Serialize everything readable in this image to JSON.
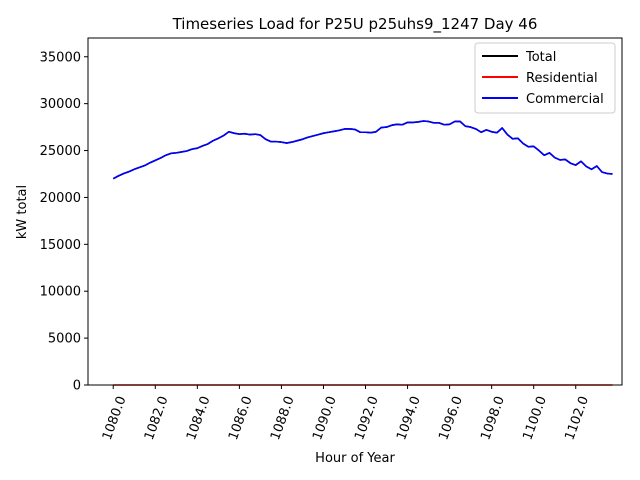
{
  "chart_data": {
    "type": "line",
    "title": "Timeseries Load for P25U p25uhs9_1247  Day 46",
    "xlabel": "Hour of Year",
    "ylabel": "kW total",
    "xlim": [
      1078.8,
      1104.2
    ],
    "ylim": [
      0,
      37000
    ],
    "x_ticks": [
      1080,
      1082,
      1084,
      1086,
      1088,
      1090,
      1092,
      1094,
      1096,
      1098,
      1100,
      1102
    ],
    "x_tick_labels": [
      "1080.0",
      "1082.0",
      "1084.0",
      "1086.0",
      "1088.0",
      "1090.0",
      "1092.0",
      "1094.0",
      "1096.0",
      "1098.0",
      "1100.0",
      "1102.0"
    ],
    "y_ticks": [
      0,
      5000,
      10000,
      15000,
      20000,
      25000,
      30000,
      35000
    ],
    "y_tick_labels": [
      "0",
      "5000",
      "10000",
      "15000",
      "20000",
      "25000",
      "30000",
      "35000"
    ],
    "legend_position": "top-right",
    "x": [
      1080.0,
      1080.25,
      1080.5,
      1080.75,
      1081.0,
      1081.25,
      1081.5,
      1081.75,
      1082.0,
      1082.25,
      1082.5,
      1082.75,
      1083.0,
      1083.25,
      1083.5,
      1083.75,
      1084.0,
      1084.25,
      1084.5,
      1084.75,
      1085.0,
      1085.25,
      1085.5,
      1085.75,
      1086.0,
      1086.25,
      1086.5,
      1086.75,
      1087.0,
      1087.25,
      1087.5,
      1087.75,
      1088.0,
      1088.25,
      1088.5,
      1088.75,
      1089.0,
      1089.25,
      1089.5,
      1089.75,
      1090.0,
      1090.25,
      1090.5,
      1090.75,
      1091.0,
      1091.25,
      1091.5,
      1091.75,
      1092.0,
      1092.25,
      1092.5,
      1092.75,
      1093.0,
      1093.25,
      1093.5,
      1093.75,
      1094.0,
      1094.25,
      1094.5,
      1094.75,
      1095.0,
      1095.25,
      1095.5,
      1095.75,
      1096.0,
      1096.25,
      1096.5,
      1096.75,
      1097.0,
      1097.25,
      1097.5,
      1097.75,
      1098.0,
      1098.25,
      1098.5,
      1098.75,
      1099.0,
      1099.25,
      1099.5,
      1099.75,
      1100.0,
      1100.25,
      1100.5,
      1100.75,
      1101.0,
      1101.25,
      1101.5,
      1101.75,
      1102.0,
      1102.25,
      1102.5,
      1102.75,
      1103.0,
      1103.25,
      1103.5,
      1103.75
    ],
    "series": [
      {
        "name": "Total",
        "color": "#000000",
        "values": [
          22000,
          22300,
          22550,
          22750,
          23000,
          23200,
          23400,
          23700,
          23950,
          24200,
          24500,
          24700,
          24750,
          24850,
          24950,
          25150,
          25250,
          25500,
          25700,
          26050,
          26300,
          26600,
          27000,
          26850,
          26750,
          26800,
          26700,
          26750,
          26650,
          26200,
          25950,
          25950,
          25900,
          25800,
          25900,
          26050,
          26200,
          26400,
          26550,
          26700,
          26850,
          26950,
          27050,
          27150,
          27300,
          27300,
          27250,
          26950,
          26950,
          26900,
          27000,
          27450,
          27500,
          27700,
          27800,
          27750,
          28000,
          28000,
          28050,
          28150,
          28100,
          27950,
          27950,
          27750,
          27800,
          28100,
          28100,
          27600,
          27500,
          27300,
          26950,
          27200,
          27000,
          26900,
          27400,
          26700,
          26250,
          26300,
          25750,
          25400,
          25450,
          25000,
          24500,
          24750,
          24250,
          24000,
          24050,
          23650,
          23450,
          23850,
          23300,
          23000,
          23350,
          22700,
          22550,
          22500
        ]
      },
      {
        "name": "Residential",
        "color": "#ff0000",
        "values": [
          0,
          0,
          0,
          0,
          0,
          0,
          0,
          0,
          0,
          0,
          0,
          0,
          0,
          0,
          0,
          0,
          0,
          0,
          0,
          0,
          0,
          0,
          0,
          0,
          0,
          0,
          0,
          0,
          0,
          0,
          0,
          0,
          0,
          0,
          0,
          0,
          0,
          0,
          0,
          0,
          0,
          0,
          0,
          0,
          0,
          0,
          0,
          0,
          0,
          0,
          0,
          0,
          0,
          0,
          0,
          0,
          0,
          0,
          0,
          0,
          0,
          0,
          0,
          0,
          0,
          0,
          0,
          0,
          0,
          0,
          0,
          0,
          0,
          0,
          0,
          0,
          0,
          0,
          0,
          0,
          0,
          0,
          0,
          0,
          0,
          0,
          0,
          0,
          0,
          0,
          0,
          0,
          0,
          0,
          0,
          0
        ]
      },
      {
        "name": "Commercial",
        "color": "#0000ff",
        "values": [
          22000,
          22300,
          22550,
          22750,
          23000,
          23200,
          23400,
          23700,
          23950,
          24200,
          24500,
          24700,
          24750,
          24850,
          24950,
          25150,
          25250,
          25500,
          25700,
          26050,
          26300,
          26600,
          27000,
          26850,
          26750,
          26800,
          26700,
          26750,
          26650,
          26200,
          25950,
          25950,
          25900,
          25800,
          25900,
          26050,
          26200,
          26400,
          26550,
          26700,
          26850,
          26950,
          27050,
          27150,
          27300,
          27300,
          27250,
          26950,
          26950,
          26900,
          27000,
          27450,
          27500,
          27700,
          27800,
          27750,
          28000,
          28000,
          28050,
          28150,
          28100,
          27950,
          27950,
          27750,
          27800,
          28100,
          28100,
          27600,
          27500,
          27300,
          26950,
          27200,
          27000,
          26900,
          27400,
          26700,
          26250,
          26300,
          25750,
          25400,
          25450,
          25000,
          24500,
          24750,
          24250,
          24000,
          24050,
          23650,
          23450,
          23850,
          23300,
          23000,
          23350,
          22700,
          22550,
          22500
        ]
      }
    ]
  }
}
